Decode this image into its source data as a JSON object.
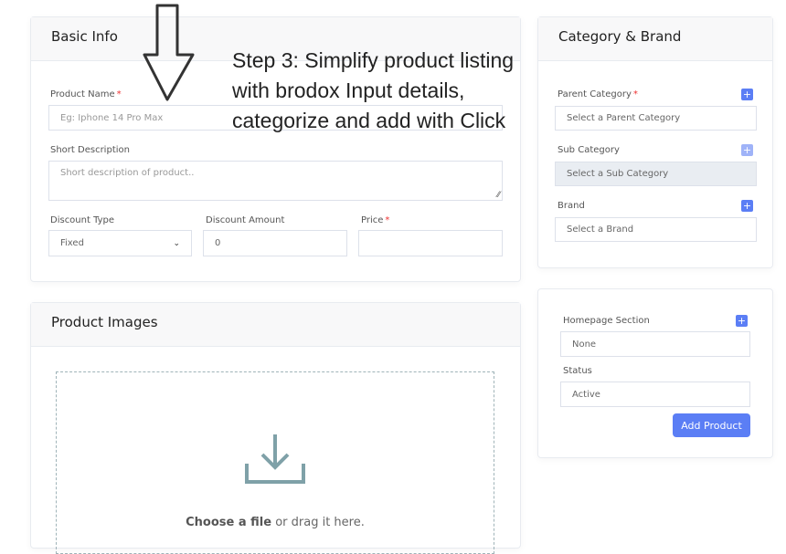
{
  "basic_info": {
    "title": "Basic Info",
    "product_name_label": "Product Name",
    "required": "*",
    "product_name_placeholder": "Eg: Iphone 14 Pro Max",
    "short_desc_label": "Short Description",
    "short_desc_placeholder": "Short description of product..",
    "discount_type_label": "Discount Type",
    "discount_type_value": "Fixed",
    "discount_amount_label": "Discount Amount",
    "discount_amount_value": "0",
    "price_label": "Price",
    "price_value": ""
  },
  "product_images": {
    "title": "Product Images",
    "choose": "Choose a file",
    "drag": " or drag it here."
  },
  "category_brand": {
    "title": "Category & Brand",
    "parent_label": "Parent Category",
    "parent_placeholder": "Select a Parent Category",
    "sub_label": "Sub Category",
    "sub_placeholder": "Select a Sub Category",
    "brand_label": "Brand",
    "brand_placeholder": "Select a Brand",
    "plus": "+"
  },
  "publish": {
    "homepage_label": "Homepage Section",
    "homepage_value": "None",
    "status_label": "Status",
    "status_value": "Active",
    "add_button": "Add Product"
  },
  "annotation": {
    "text": "Step 3: Simplify product listing with brodox Input details, categorize and add with Click"
  },
  "colors": {
    "accent": "#5b7ef5",
    "required": "#ee3333"
  }
}
